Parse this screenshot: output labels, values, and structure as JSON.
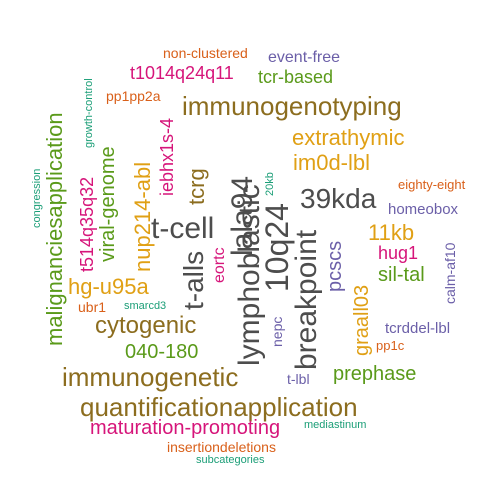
{
  "colors": {
    "dark_gray": "#4d4d4d",
    "brown": "#8c6d1f",
    "olive_green": "#5a9a1a",
    "gold": "#e0a015",
    "magenta": "#d6157a",
    "purple": "#6b5fa8",
    "teal": "#1b9e77",
    "orange": "#d9601a"
  },
  "words": [
    {
      "text": "breakpoint",
      "color": "#4d4d4d"
    },
    {
      "text": "t-cell",
      "color": "#4d4d4d"
    },
    {
      "text": "lymphoblastic",
      "color": "#4d4d4d"
    },
    {
      "text": "10q24",
      "color": "#4d4d4d"
    },
    {
      "text": "lala94",
      "color": "#4d4d4d"
    },
    {
      "text": "39kda",
      "color": "#4d4d4d"
    },
    {
      "text": "t-alls",
      "color": "#4d4d4d"
    },
    {
      "text": "immunogenotyping",
      "color": "#8c6d1f"
    },
    {
      "text": "quantificationapplication",
      "color": "#8c6d1f"
    },
    {
      "text": "immunogenetic",
      "color": "#8c6d1f"
    },
    {
      "text": "cytogenic",
      "color": "#8c6d1f"
    },
    {
      "text": "nup214-abl",
      "color": "#e0a015"
    },
    {
      "text": "tcrg",
      "color": "#8c6d1f"
    },
    {
      "text": "extrathymic",
      "color": "#e0a015"
    },
    {
      "text": "im0d-lbl",
      "color": "#e0a015"
    },
    {
      "text": "11kb",
      "color": "#e0a015"
    },
    {
      "text": "hg-u95a",
      "color": "#e0a015"
    },
    {
      "text": "graall03",
      "color": "#e0a015"
    },
    {
      "text": "malignanciesapplication",
      "color": "#5a9a1a"
    },
    {
      "text": "viral-genome",
      "color": "#5a9a1a"
    },
    {
      "text": "040-180",
      "color": "#5a9a1a"
    },
    {
      "text": "prephase",
      "color": "#5a9a1a"
    },
    {
      "text": "sil-tal",
      "color": "#5a9a1a"
    },
    {
      "text": "tcr-based",
      "color": "#5a9a1a"
    },
    {
      "text": "pcscs",
      "color": "#6b5fa8"
    },
    {
      "text": "maturation-promoting",
      "color": "#d6157a"
    },
    {
      "text": "t1014q24q11",
      "color": "#d6157a"
    },
    {
      "text": "t514q35q32",
      "color": "#d6157a"
    },
    {
      "text": "iebhx1s-4",
      "color": "#d6157a"
    },
    {
      "text": "eortc",
      "color": "#d6157a"
    },
    {
      "text": "hug1",
      "color": "#d6157a"
    },
    {
      "text": "homeobox",
      "color": "#6b5fa8"
    },
    {
      "text": "tcrddel-lbl",
      "color": "#6b5fa8"
    },
    {
      "text": "calm-af10",
      "color": "#6b5fa8"
    },
    {
      "text": "event-free",
      "color": "#6b5fa8"
    },
    {
      "text": "nepc",
      "color": "#6b5fa8"
    },
    {
      "text": "t-lbl",
      "color": "#6b5fa8"
    },
    {
      "text": "ubr1",
      "color": "#d9601a"
    },
    {
      "text": "pp1pp2a",
      "color": "#d9601a"
    },
    {
      "text": "non-clustered",
      "color": "#d9601a"
    },
    {
      "text": "eighty-eight",
      "color": "#d9601a"
    },
    {
      "text": "pp1c",
      "color": "#d9601a"
    },
    {
      "text": "insertiondeletions",
      "color": "#d9601a"
    },
    {
      "text": "growth-control",
      "color": "#1b9e77"
    },
    {
      "text": "congression",
      "color": "#1b9e77"
    },
    {
      "text": "smarcd3",
      "color": "#1b9e77"
    },
    {
      "text": "20kb",
      "color": "#1b9e77"
    },
    {
      "text": "mediastinum",
      "color": "#1b9e77"
    },
    {
      "text": "subcategories",
      "color": "#1b9e77"
    }
  ]
}
